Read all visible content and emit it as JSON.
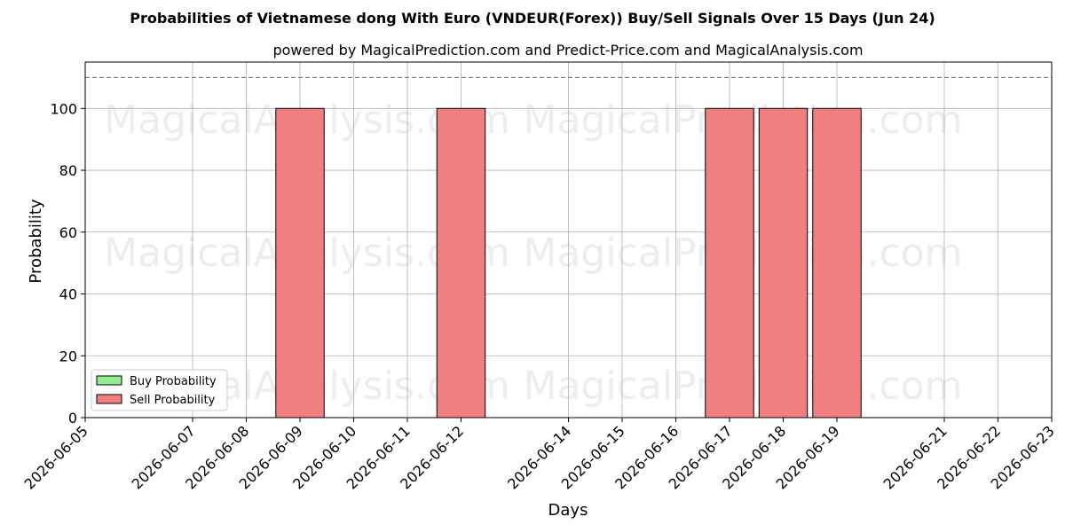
{
  "chart_data": {
    "type": "bar",
    "title": "Probabilities of Vietnamese dong With Euro (VNDEUR(Forex)) Buy/Sell Signals Over 15 Days (Jun 24)",
    "subtitle": "powered by MagicalPrediction.com and Predict-Price.com and MagicalAnalysis.com",
    "xlabel": "Days",
    "ylabel": "Probability",
    "ylim": [
      0,
      115
    ],
    "yticks": [
      0,
      20,
      40,
      60,
      80,
      100
    ],
    "reference_line": 110,
    "grid": true,
    "legend_position": "lower-left",
    "xticks": [
      "2026-06-05",
      "2026-06-07",
      "2026-06-08",
      "2026-06-09",
      "2026-06-10",
      "2026-06-11",
      "2026-06-12",
      "2026-06-14",
      "2026-06-15",
      "2026-06-16",
      "2026-06-17",
      "2026-06-18",
      "2026-06-19",
      "2026-06-21",
      "2026-06-22",
      "2026-06-23"
    ],
    "series": [
      {
        "name": "Buy Probability",
        "color": "#90ee90",
        "points": []
      },
      {
        "name": "Sell Probability",
        "color": "#f08080",
        "points": [
          {
            "date": "2026-06-09",
            "value": 100
          },
          {
            "date": "2026-06-12",
            "value": 100
          },
          {
            "date": "2026-06-17",
            "value": 100
          },
          {
            "date": "2026-06-18",
            "value": 100
          },
          {
            "date": "2026-06-19",
            "value": 100
          }
        ]
      }
    ],
    "watermarks": [
      "MagicalAnalysis.com",
      "MagicalPrediction.com"
    ]
  }
}
